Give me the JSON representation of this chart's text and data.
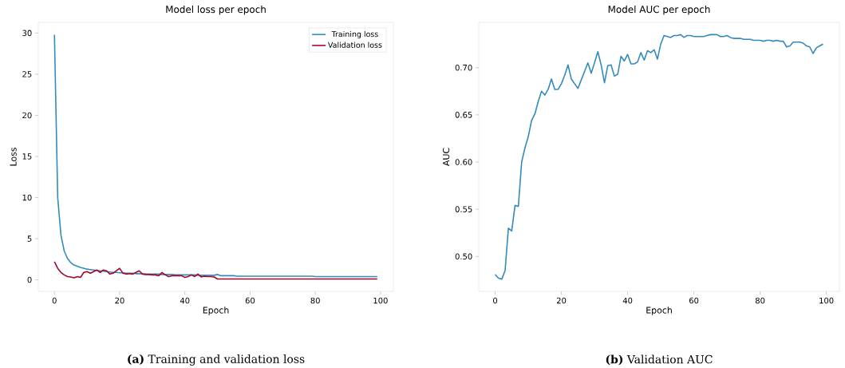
{
  "chart_data": [
    {
      "type": "line",
      "title": "Model loss per epoch",
      "xlabel": "Epoch",
      "ylabel": "Loss",
      "xlim": [
        -4.95,
        103.95
      ],
      "ylim": [
        -1.4,
        31.3
      ],
      "xticks": [
        0,
        20,
        40,
        60,
        80,
        100
      ],
      "yticks": [
        0,
        5,
        10,
        15,
        20,
        25,
        30
      ],
      "legend": "top right",
      "grid": false,
      "x": [
        0,
        1,
        2,
        3,
        4,
        5,
        6,
        7,
        8,
        9,
        10,
        11,
        12,
        13,
        14,
        15,
        16,
        17,
        18,
        19,
        20,
        21,
        22,
        23,
        24,
        25,
        26,
        27,
        28,
        29,
        30,
        31,
        32,
        33,
        34,
        35,
        36,
        37,
        38,
        39,
        40,
        41,
        42,
        43,
        44,
        45,
        46,
        47,
        48,
        49,
        50,
        51,
        52,
        53,
        54,
        55,
        56,
        57,
        58,
        59,
        60,
        61,
        62,
        63,
        64,
        65,
        66,
        67,
        68,
        69,
        70,
        71,
        72,
        73,
        74,
        75,
        76,
        77,
        78,
        79,
        80,
        81,
        82,
        83,
        84,
        85,
        86,
        87,
        88,
        89,
        90,
        91,
        92,
        93,
        94,
        95,
        96,
        97,
        98,
        99
      ],
      "series": [
        {
          "name": "Training loss",
          "color": "#348abd",
          "values": [
            29.8,
            10,
            5.4,
            3.5,
            2.6,
            2.1,
            1.8,
            1.65,
            1.5,
            1.4,
            1.3,
            1.25,
            1.2,
            1.15,
            1.1,
            1.05,
            1.0,
            0.95,
            0.9,
            0.9,
            0.85,
            0.85,
            0.8,
            0.8,
            0.8,
            0.75,
            0.75,
            0.75,
            0.7,
            0.7,
            0.7,
            0.7,
            0.7,
            0.65,
            0.65,
            0.65,
            0.65,
            0.6,
            0.6,
            0.6,
            0.6,
            0.6,
            0.6,
            0.6,
            0.55,
            0.55,
            0.55,
            0.55,
            0.55,
            0.55,
            0.65,
            0.5,
            0.5,
            0.5,
            0.5,
            0.5,
            0.45,
            0.45,
            0.45,
            0.45,
            0.45,
            0.45,
            0.45,
            0.45,
            0.45,
            0.45,
            0.45,
            0.45,
            0.45,
            0.45,
            0.45,
            0.45,
            0.45,
            0.45,
            0.45,
            0.45,
            0.45,
            0.45,
            0.45,
            0.45,
            0.4,
            0.4,
            0.4,
            0.4,
            0.4,
            0.4,
            0.4,
            0.4,
            0.4,
            0.4,
            0.4,
            0.4,
            0.4,
            0.4,
            0.4,
            0.4,
            0.4,
            0.4,
            0.4,
            0.4
          ]
        },
        {
          "name": "Validation loss",
          "color": "#a60628",
          "values": [
            2.2,
            1.4,
            0.9,
            0.6,
            0.4,
            0.35,
            0.25,
            0.4,
            0.3,
            0.9,
            1.0,
            0.8,
            1.0,
            1.2,
            0.9,
            1.2,
            1.1,
            0.7,
            0.8,
            1.1,
            1.4,
            0.8,
            0.7,
            0.75,
            0.7,
            0.9,
            1.1,
            0.7,
            0.65,
            0.65,
            0.6,
            0.6,
            0.5,
            0.9,
            0.6,
            0.4,
            0.5,
            0.5,
            0.5,
            0.5,
            0.3,
            0.4,
            0.6,
            0.4,
            0.7,
            0.35,
            0.45,
            0.4,
            0.4,
            0.35,
            0.1,
            0.1,
            0.1,
            0.1,
            0.1,
            0.1,
            0.1,
            0.1,
            0.1,
            0.1,
            0.1,
            0.1,
            0.1,
            0.1,
            0.1,
            0.1,
            0.1,
            0.1,
            0.1,
            0.1,
            0.1,
            0.1,
            0.1,
            0.1,
            0.1,
            0.1,
            0.1,
            0.1,
            0.1,
            0.1,
            0.1,
            0.1,
            0.1,
            0.1,
            0.1,
            0.1,
            0.1,
            0.1,
            0.1,
            0.1,
            0.1,
            0.1,
            0.1,
            0.1,
            0.1,
            0.1,
            0.1,
            0.1,
            0.1,
            0.1
          ]
        }
      ],
      "annotations": [
        "**(a)** Training and validation loss"
      ]
    },
    {
      "type": "line",
      "title": "Model AUC per epoch",
      "xlabel": "Epoch",
      "ylabel": "AUC",
      "xlim": [
        -4.95,
        103.95
      ],
      "ylim": [
        0.463,
        0.748
      ],
      "xticks": [
        0,
        20,
        40,
        60,
        80,
        100
      ],
      "yticks": [
        {
          "value": 0.5,
          "label": "0.50"
        },
        {
          "value": 0.55,
          "label": "0.55"
        },
        {
          "value": 0.6,
          "label": "0.60"
        },
        {
          "value": 0.65,
          "label": "0.65"
        },
        {
          "value": 0.7,
          "label": "0.70"
        }
      ],
      "grid": false,
      "x": [
        0,
        1,
        2,
        3,
        4,
        5,
        6,
        7,
        8,
        9,
        10,
        11,
        12,
        13,
        14,
        15,
        16,
        17,
        18,
        19,
        20,
        21,
        22,
        23,
        24,
        25,
        26,
        27,
        28,
        29,
        30,
        31,
        32,
        33,
        34,
        35,
        36,
        37,
        38,
        39,
        40,
        41,
        42,
        43,
        44,
        45,
        46,
        47,
        48,
        49,
        50,
        51,
        52,
        53,
        54,
        55,
        56,
        57,
        58,
        59,
        60,
        61,
        62,
        63,
        64,
        65,
        66,
        67,
        68,
        69,
        70,
        71,
        72,
        73,
        74,
        75,
        76,
        77,
        78,
        79,
        80,
        81,
        82,
        83,
        84,
        85,
        86,
        87,
        88,
        89,
        90,
        91,
        92,
        93,
        94,
        95,
        96,
        97,
        98,
        99
      ],
      "series": [
        {
          "color": "#348abd",
          "values": [
            0.481,
            0.477,
            0.476,
            0.485,
            0.53,
            0.527,
            0.554,
            0.553,
            0.6,
            0.615,
            0.627,
            0.644,
            0.651,
            0.664,
            0.675,
            0.671,
            0.677,
            0.688,
            0.677,
            0.677,
            0.683,
            0.692,
            0.703,
            0.688,
            0.683,
            0.678,
            0.687,
            0.696,
            0.705,
            0.694,
            0.705,
            0.717,
            0.703,
            0.684,
            0.702,
            0.703,
            0.691,
            0.693,
            0.712,
            0.707,
            0.714,
            0.704,
            0.704,
            0.706,
            0.716,
            0.708,
            0.718,
            0.716,
            0.719,
            0.709,
            0.725,
            0.734,
            0.733,
            0.732,
            0.734,
            0.734,
            0.735,
            0.732,
            0.734,
            0.734,
            0.733,
            0.733,
            0.733,
            0.733,
            0.734,
            0.735,
            0.735,
            0.735,
            0.733,
            0.733,
            0.734,
            0.732,
            0.731,
            0.731,
            0.731,
            0.73,
            0.73,
            0.73,
            0.729,
            0.729,
            0.729,
            0.728,
            0.729,
            0.729,
            0.728,
            0.729,
            0.728,
            0.728,
            0.722,
            0.723,
            0.727,
            0.727,
            0.727,
            0.726,
            0.723,
            0.722,
            0.715,
            0.721,
            0.723,
            0.725
          ]
        }
      ],
      "annotations": [
        "**(b)** Validation AUC"
      ]
    }
  ]
}
